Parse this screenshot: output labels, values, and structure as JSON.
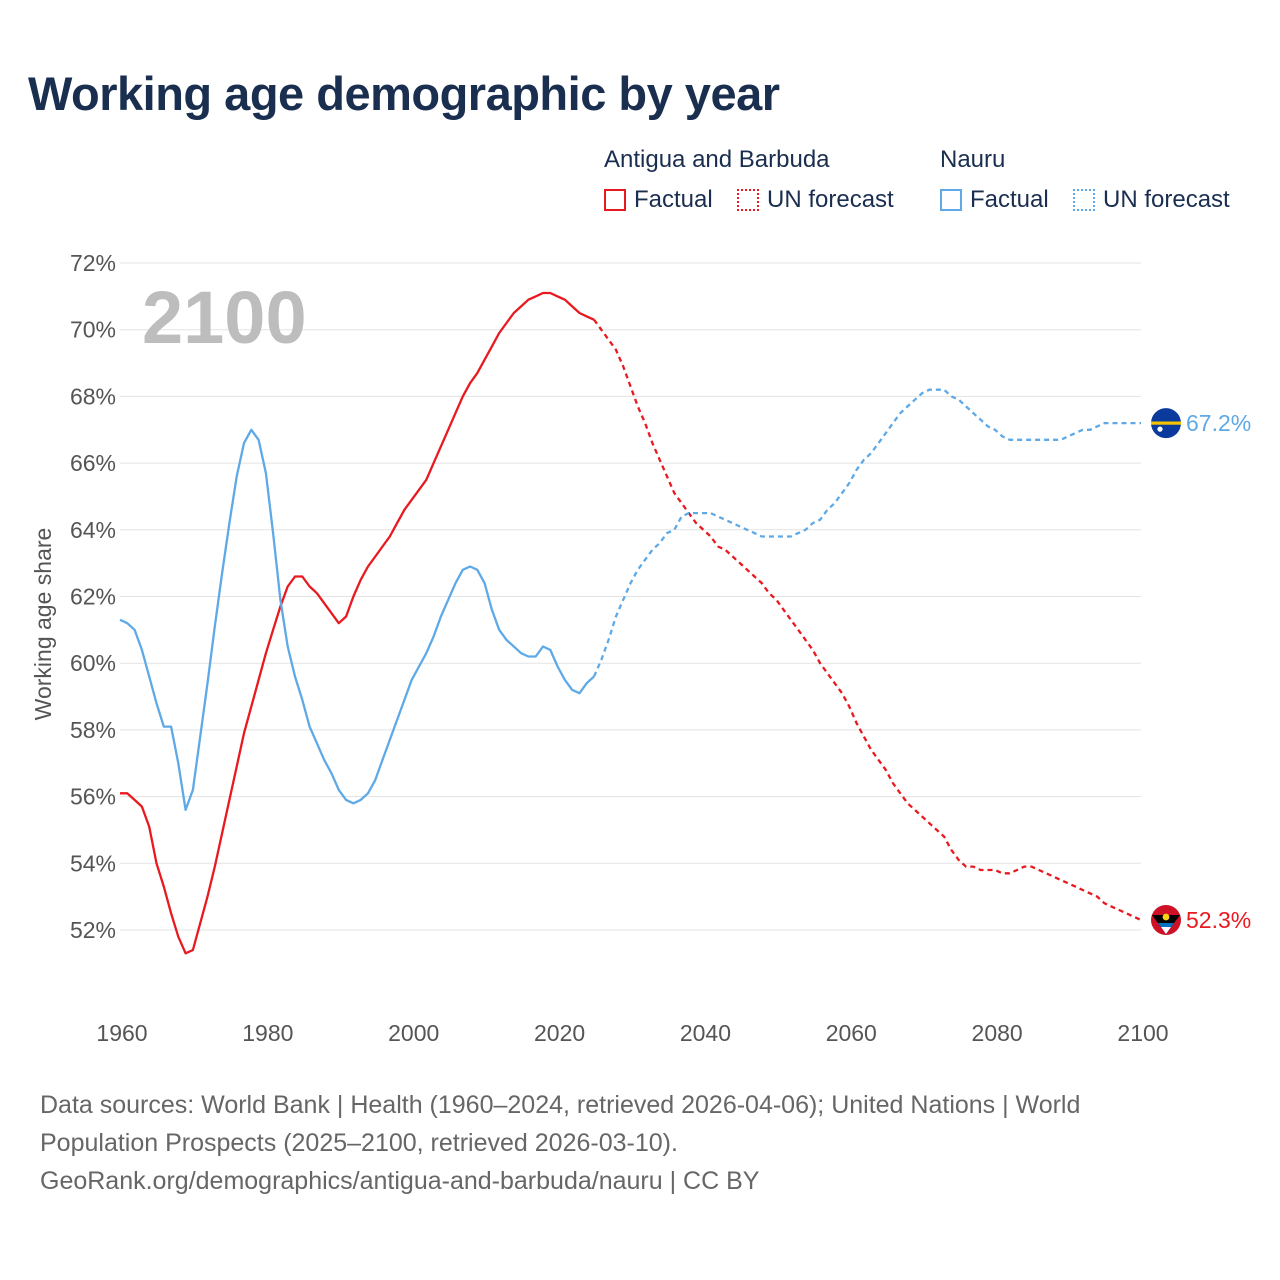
{
  "title": "Working age demographic by year",
  "legend": {
    "groups": [
      {
        "name": "Antigua and Barbuda",
        "color": "#e8191f",
        "factual_label": "Factual",
        "forecast_label": "UN forecast"
      },
      {
        "name": "Nauru",
        "color": "#5ea9e6",
        "factual_label": "Factual",
        "forecast_label": "UN forecast"
      }
    ]
  },
  "year_watermark": "2100",
  "chart_data": {
    "type": "line",
    "title": "Working age demographic by year",
    "ylabel": "Working age share",
    "xlabel": "",
    "xlim": [
      1960,
      2100
    ],
    "ylim": [
      50,
      72
    ],
    "y_ticks": [
      52,
      54,
      56,
      58,
      60,
      62,
      64,
      66,
      68,
      70,
      72
    ],
    "y_tick_labels": [
      "52%",
      "54%",
      "56%",
      "58%",
      "60%",
      "62%",
      "64%",
      "66%",
      "68%",
      "70%",
      "72%"
    ],
    "x_ticks": [
      1960,
      1980,
      2000,
      2020,
      2040,
      2060,
      2080,
      2100
    ],
    "x_tick_labels": [
      "1960",
      "1980",
      "2000",
      "2020",
      "2040",
      "2060",
      "2080",
      "2100"
    ],
    "forecast_start": 2025,
    "series": [
      {
        "name": "Antigua and Barbuda",
        "color": "#e8191f",
        "end_label": "52.3%",
        "points": [
          [
            1960,
            56.1
          ],
          [
            1961,
            56.1
          ],
          [
            1962,
            55.9
          ],
          [
            1963,
            55.7
          ],
          [
            1964,
            55.1
          ],
          [
            1965,
            54.0
          ],
          [
            1966,
            53.3
          ],
          [
            1967,
            52.5
          ],
          [
            1968,
            51.8
          ],
          [
            1969,
            51.3
          ],
          [
            1970,
            51.4
          ],
          [
            1971,
            52.2
          ],
          [
            1972,
            53.0
          ],
          [
            1973,
            53.9
          ],
          [
            1974,
            54.9
          ],
          [
            1975,
            55.9
          ],
          [
            1976,
            56.9
          ],
          [
            1977,
            57.9
          ],
          [
            1978,
            58.7
          ],
          [
            1979,
            59.5
          ],
          [
            1980,
            60.3
          ],
          [
            1981,
            61.0
          ],
          [
            1982,
            61.7
          ],
          [
            1983,
            62.3
          ],
          [
            1984,
            62.6
          ],
          [
            1985,
            62.6
          ],
          [
            1986,
            62.3
          ],
          [
            1987,
            62.1
          ],
          [
            1988,
            61.8
          ],
          [
            1989,
            61.5
          ],
          [
            1990,
            61.2
          ],
          [
            1991,
            61.4
          ],
          [
            1992,
            62.0
          ],
          [
            1993,
            62.5
          ],
          [
            1994,
            62.9
          ],
          [
            1995,
            63.2
          ],
          [
            1996,
            63.5
          ],
          [
            1997,
            63.8
          ],
          [
            1998,
            64.2
          ],
          [
            1999,
            64.6
          ],
          [
            2000,
            64.9
          ],
          [
            2001,
            65.2
          ],
          [
            2002,
            65.5
          ],
          [
            2003,
            66.0
          ],
          [
            2004,
            66.5
          ],
          [
            2005,
            67.0
          ],
          [
            2006,
            67.5
          ],
          [
            2007,
            68.0
          ],
          [
            2008,
            68.4
          ],
          [
            2009,
            68.7
          ],
          [
            2010,
            69.1
          ],
          [
            2011,
            69.5
          ],
          [
            2012,
            69.9
          ],
          [
            2013,
            70.2
          ],
          [
            2014,
            70.5
          ],
          [
            2015,
            70.7
          ],
          [
            2016,
            70.9
          ],
          [
            2017,
            71.0
          ],
          [
            2018,
            71.1
          ],
          [
            2019,
            71.1
          ],
          [
            2020,
            71.0
          ],
          [
            2021,
            70.9
          ],
          [
            2022,
            70.7
          ],
          [
            2023,
            70.5
          ],
          [
            2024,
            70.4
          ],
          [
            2025,
            70.3
          ],
          [
            2026,
            70.0
          ],
          [
            2027,
            69.7
          ],
          [
            2028,
            69.4
          ],
          [
            2029,
            68.9
          ],
          [
            2030,
            68.3
          ],
          [
            2031,
            67.7
          ],
          [
            2032,
            67.2
          ],
          [
            2033,
            66.6
          ],
          [
            2034,
            66.1
          ],
          [
            2035,
            65.6
          ],
          [
            2036,
            65.1
          ],
          [
            2037,
            64.8
          ],
          [
            2038,
            64.5
          ],
          [
            2039,
            64.2
          ],
          [
            2040,
            64.0
          ],
          [
            2041,
            63.8
          ],
          [
            2042,
            63.5
          ],
          [
            2043,
            63.4
          ],
          [
            2044,
            63.2
          ],
          [
            2045,
            63.0
          ],
          [
            2046,
            62.8
          ],
          [
            2047,
            62.6
          ],
          [
            2048,
            62.4
          ],
          [
            2049,
            62.1
          ],
          [
            2050,
            61.9
          ],
          [
            2051,
            61.6
          ],
          [
            2052,
            61.3
          ],
          [
            2053,
            61.0
          ],
          [
            2054,
            60.7
          ],
          [
            2055,
            60.4
          ],
          [
            2056,
            60.0
          ],
          [
            2057,
            59.7
          ],
          [
            2058,
            59.4
          ],
          [
            2059,
            59.1
          ],
          [
            2060,
            58.7
          ],
          [
            2061,
            58.2
          ],
          [
            2062,
            57.8
          ],
          [
            2063,
            57.4
          ],
          [
            2064,
            57.1
          ],
          [
            2065,
            56.8
          ],
          [
            2066,
            56.4
          ],
          [
            2067,
            56.1
          ],
          [
            2068,
            55.8
          ],
          [
            2069,
            55.6
          ],
          [
            2070,
            55.4
          ],
          [
            2071,
            55.2
          ],
          [
            2072,
            55.0
          ],
          [
            2073,
            54.8
          ],
          [
            2074,
            54.4
          ],
          [
            2075,
            54.1
          ],
          [
            2076,
            53.9
          ],
          [
            2077,
            53.9
          ],
          [
            2078,
            53.8
          ],
          [
            2079,
            53.8
          ],
          [
            2080,
            53.8
          ],
          [
            2081,
            53.7
          ],
          [
            2082,
            53.7
          ],
          [
            2083,
            53.8
          ],
          [
            2084,
            53.9
          ],
          [
            2085,
            53.9
          ],
          [
            2086,
            53.8
          ],
          [
            2087,
            53.7
          ],
          [
            2088,
            53.6
          ],
          [
            2089,
            53.5
          ],
          [
            2090,
            53.4
          ],
          [
            2091,
            53.3
          ],
          [
            2092,
            53.2
          ],
          [
            2093,
            53.1
          ],
          [
            2094,
            53.0
          ],
          [
            2095,
            52.8
          ],
          [
            2096,
            52.7
          ],
          [
            2097,
            52.6
          ],
          [
            2098,
            52.5
          ],
          [
            2099,
            52.4
          ],
          [
            2100,
            52.3
          ]
        ]
      },
      {
        "name": "Nauru",
        "color": "#5ea9e6",
        "end_label": "67.2%",
        "points": [
          [
            1960,
            61.3
          ],
          [
            1961,
            61.2
          ],
          [
            1962,
            61.0
          ],
          [
            1963,
            60.4
          ],
          [
            1964,
            59.6
          ],
          [
            1965,
            58.8
          ],
          [
            1966,
            58.1
          ],
          [
            1967,
            58.1
          ],
          [
            1968,
            57.0
          ],
          [
            1969,
            55.6
          ],
          [
            1970,
            56.2
          ],
          [
            1971,
            57.8
          ],
          [
            1972,
            59.4
          ],
          [
            1973,
            61.1
          ],
          [
            1974,
            62.7
          ],
          [
            1975,
            64.2
          ],
          [
            1976,
            65.6
          ],
          [
            1977,
            66.6
          ],
          [
            1978,
            67.0
          ],
          [
            1979,
            66.7
          ],
          [
            1980,
            65.7
          ],
          [
            1981,
            63.9
          ],
          [
            1982,
            61.9
          ],
          [
            1983,
            60.5
          ],
          [
            1984,
            59.6
          ],
          [
            1985,
            58.9
          ],
          [
            1986,
            58.1
          ],
          [
            1987,
            57.6
          ],
          [
            1988,
            57.1
          ],
          [
            1989,
            56.7
          ],
          [
            1990,
            56.2
          ],
          [
            1991,
            55.9
          ],
          [
            1992,
            55.8
          ],
          [
            1993,
            55.9
          ],
          [
            1994,
            56.1
          ],
          [
            1995,
            56.5
          ],
          [
            1996,
            57.1
          ],
          [
            1997,
            57.7
          ],
          [
            1998,
            58.3
          ],
          [
            1999,
            58.9
          ],
          [
            2000,
            59.5
          ],
          [
            2001,
            59.9
          ],
          [
            2002,
            60.3
          ],
          [
            2003,
            60.8
          ],
          [
            2004,
            61.4
          ],
          [
            2005,
            61.9
          ],
          [
            2006,
            62.4
          ],
          [
            2007,
            62.8
          ],
          [
            2008,
            62.9
          ],
          [
            2009,
            62.8
          ],
          [
            2010,
            62.4
          ],
          [
            2011,
            61.6
          ],
          [
            2012,
            61.0
          ],
          [
            2013,
            60.7
          ],
          [
            2014,
            60.5
          ],
          [
            2015,
            60.3
          ],
          [
            2016,
            60.2
          ],
          [
            2017,
            60.2
          ],
          [
            2018,
            60.5
          ],
          [
            2019,
            60.4
          ],
          [
            2020,
            59.9
          ],
          [
            2021,
            59.5
          ],
          [
            2022,
            59.2
          ],
          [
            2023,
            59.1
          ],
          [
            2024,
            59.4
          ],
          [
            2025,
            59.6
          ],
          [
            2026,
            60.1
          ],
          [
            2027,
            60.7
          ],
          [
            2028,
            61.4
          ],
          [
            2029,
            61.9
          ],
          [
            2030,
            62.4
          ],
          [
            2031,
            62.8
          ],
          [
            2032,
            63.1
          ],
          [
            2033,
            63.4
          ],
          [
            2034,
            63.6
          ],
          [
            2035,
            63.9
          ],
          [
            2036,
            64.0
          ],
          [
            2037,
            64.4
          ],
          [
            2038,
            64.5
          ],
          [
            2039,
            64.5
          ],
          [
            2040,
            64.5
          ],
          [
            2041,
            64.5
          ],
          [
            2042,
            64.4
          ],
          [
            2043,
            64.3
          ],
          [
            2044,
            64.2
          ],
          [
            2045,
            64.1
          ],
          [
            2046,
            64.0
          ],
          [
            2047,
            63.9
          ],
          [
            2048,
            63.8
          ],
          [
            2049,
            63.8
          ],
          [
            2050,
            63.8
          ],
          [
            2051,
            63.8
          ],
          [
            2052,
            63.8
          ],
          [
            2053,
            63.9
          ],
          [
            2054,
            64.0
          ],
          [
            2055,
            64.2
          ],
          [
            2056,
            64.3
          ],
          [
            2057,
            64.6
          ],
          [
            2058,
            64.8
          ],
          [
            2059,
            65.1
          ],
          [
            2060,
            65.4
          ],
          [
            2061,
            65.8
          ],
          [
            2062,
            66.1
          ],
          [
            2063,
            66.3
          ],
          [
            2064,
            66.6
          ],
          [
            2065,
            66.9
          ],
          [
            2066,
            67.2
          ],
          [
            2067,
            67.5
          ],
          [
            2068,
            67.7
          ],
          [
            2069,
            67.9
          ],
          [
            2070,
            68.1
          ],
          [
            2071,
            68.2
          ],
          [
            2072,
            68.2
          ],
          [
            2073,
            68.2
          ],
          [
            2074,
            68.0
          ],
          [
            2075,
            67.9
          ],
          [
            2076,
            67.7
          ],
          [
            2077,
            67.5
          ],
          [
            2078,
            67.3
          ],
          [
            2079,
            67.1
          ],
          [
            2080,
            67.0
          ],
          [
            2081,
            66.8
          ],
          [
            2082,
            66.7
          ],
          [
            2083,
            66.7
          ],
          [
            2084,
            66.7
          ],
          [
            2085,
            66.7
          ],
          [
            2086,
            66.7
          ],
          [
            2087,
            66.7
          ],
          [
            2088,
            66.7
          ],
          [
            2089,
            66.7
          ],
          [
            2090,
            66.8
          ],
          [
            2091,
            66.9
          ],
          [
            2092,
            67.0
          ],
          [
            2093,
            67.0
          ],
          [
            2094,
            67.1
          ],
          [
            2095,
            67.2
          ],
          [
            2096,
            67.2
          ],
          [
            2097,
            67.2
          ],
          [
            2098,
            67.2
          ],
          [
            2099,
            67.2
          ],
          [
            2100,
            67.2
          ]
        ]
      }
    ]
  },
  "footer": {
    "line1": "Data sources: World Bank | Health (1960–2024, retrieved 2026-04-06); United Nations | World",
    "line2": "Population Prospects (2025–2100, retrieved 2026-03-10).",
    "line3": "GeoRank.org/demographics/antigua-and-barbuda/nauru | CC BY"
  }
}
